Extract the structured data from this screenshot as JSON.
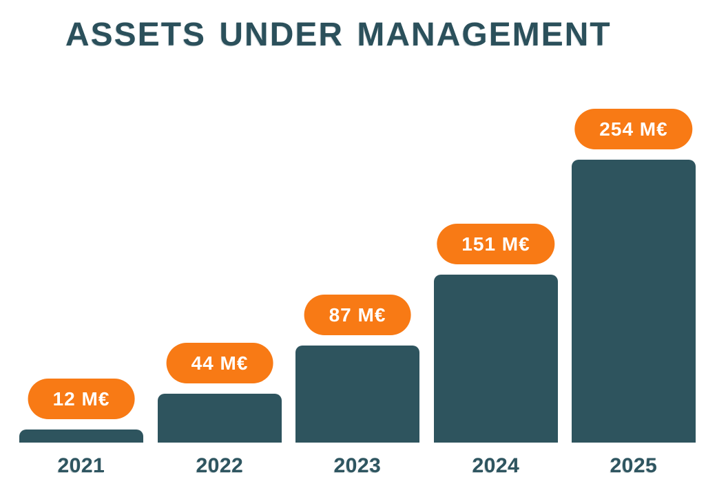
{
  "title": "ASSETS UNDER MANAGEMENT",
  "chart_data": {
    "type": "bar",
    "title": "ASSETS UNDER MANAGEMENT",
    "categories": [
      "2021",
      "2022",
      "2023",
      "2024",
      "2025"
    ],
    "values": [
      12,
      44,
      87,
      151,
      254
    ],
    "value_labels": [
      "12 M€",
      "44 M€",
      "87 M€",
      "151 M€",
      "254 M€"
    ],
    "unit": "M€",
    "xlabel": "",
    "ylabel": "",
    "ylim": [
      0,
      254
    ],
    "grid": false,
    "legend": false,
    "value_label_style": "orange-pill-above-bar",
    "colors": {
      "bar": "#2e545e",
      "title": "#2b505b",
      "axis_label": "#2e5560",
      "pill_background": "#f87a15",
      "pill_text": "#ffffff",
      "background": "#ffffff"
    }
  }
}
